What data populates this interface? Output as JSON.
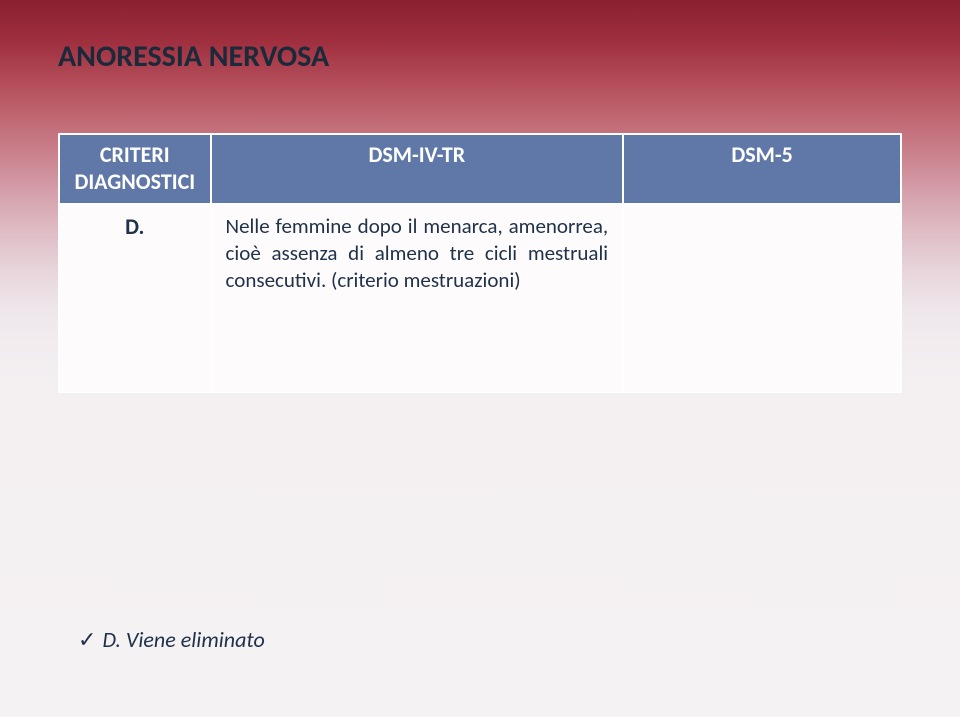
{
  "title": "ANORESSIA NERVOSA",
  "table": {
    "header": {
      "rowLabel": "CRITERI DIAGNOSTICI",
      "col1": "DSM-IV-TR",
      "col2": "DSM-5"
    },
    "row": {
      "label": "D.",
      "dsm4": "Nelle femmine dopo il menarca, amenorrea, cioè assenza di almeno tre cicli mestruali consecutivi. (criterio mestruazioni)",
      "dsm5": ""
    }
  },
  "note": {
    "checkmark": "✓",
    "text": "D. Viene eliminato"
  },
  "colors": {
    "headerBg": "#6078a8",
    "headerText": "#ffffff",
    "cellBg": "#fdfbfb",
    "cellText": "#20324a",
    "border": "#ffffff"
  }
}
